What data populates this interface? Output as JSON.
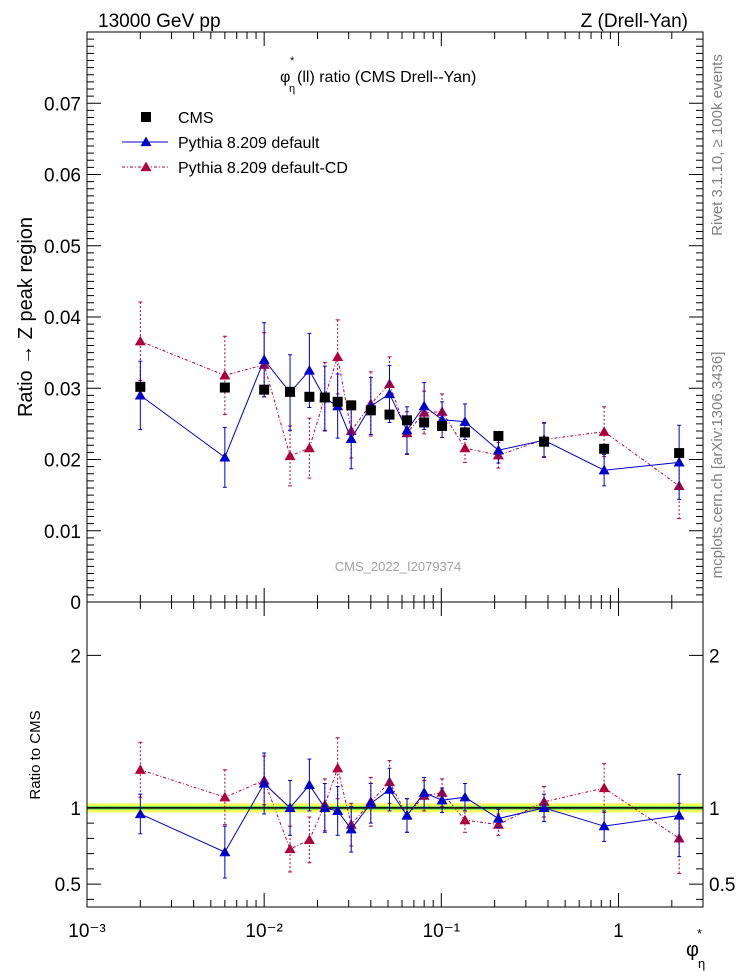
{
  "header": {
    "left_label": "13000 GeV pp",
    "right_label": "Z (Drell-Yan)"
  },
  "side_labels": {
    "rivet": "Rivet 3.1.10, ≥ 100k events",
    "mcplots": "mcplots.cern.ch [arXiv:1306.3436]"
  },
  "chart_data": [
    {
      "type": "scatter",
      "panel": "main",
      "title": "φη*(ll) ratio (CMS Drell--Yan)",
      "watermark": "CMS_2022_I2079374",
      "xlabel": "φη*",
      "ylabel": "Ratio → Z peak region",
      "xscale": "log",
      "xlim": [
        0.001,
        3
      ],
      "ylim": [
        0,
        0.08
      ],
      "yticks": [
        0,
        0.01,
        0.02,
        0.03,
        0.04,
        0.05,
        0.06,
        0.07
      ],
      "ytick_labels": [
        "0",
        "0.01",
        "0.02",
        "0.03",
        "0.04",
        "0.05",
        "0.06",
        "0.07"
      ],
      "xticks": [
        0.001,
        0.01,
        0.1,
        1
      ],
      "xtick_labels": [
        "10⁻³",
        "10⁻²",
        "10⁻¹",
        "1"
      ],
      "x": [
        0.002,
        0.006,
        0.01,
        0.014,
        0.018,
        0.022,
        0.026,
        0.031,
        0.04,
        0.051,
        0.064,
        0.08,
        0.101,
        0.136,
        0.21,
        0.38,
        0.83,
        2.2
      ],
      "series": [
        {
          "name": "CMS",
          "marker": "square",
          "color": "#000000",
          "values": [
            0.0302,
            0.0301,
            0.0298,
            0.0295,
            0.0288,
            0.0287,
            0.0281,
            0.0276,
            0.0269,
            0.0263,
            0.0255,
            0.0252,
            0.0247,
            0.0238,
            0.0233,
            0.0225,
            0.0215,
            0.0209
          ],
          "errors": [
            0.0008,
            0.0008,
            0.0007,
            0.0007,
            0.0006,
            0.0006,
            0.0006,
            0.0006,
            0.0005,
            0.0005,
            0.0005,
            0.0005,
            0.0005,
            0.0005,
            0.0005,
            0.0005,
            0.0006,
            0.0007
          ]
        },
        {
          "name": "Pythia 8.209 default",
          "marker": "triangle",
          "line": "solid",
          "color": "#0000cc",
          "values": [
            0.029,
            0.0203,
            0.034,
            0.0294,
            0.0325,
            0.0286,
            0.0275,
            0.0229,
            0.0275,
            0.0292,
            0.0241,
            0.0275,
            0.0256,
            0.0253,
            0.0213,
            0.0227,
            0.0185,
            0.0196
          ],
          "errors": [
            0.0048,
            0.0042,
            0.0052,
            0.0053,
            0.0052,
            0.0045,
            0.0045,
            0.0042,
            0.004,
            0.004,
            0.0033,
            0.0033,
            0.0025,
            0.0025,
            0.0018,
            0.0024,
            0.0022,
            0.0052
          ]
        },
        {
          "name": "Pythia 8.209 default-CD",
          "marker": "triangle",
          "line": "dash-dot",
          "color": "#b0003a",
          "values": [
            0.0366,
            0.0318,
            0.0333,
            0.0205,
            0.0216,
            0.0288,
            0.0344,
            0.024,
            0.0278,
            0.0306,
            0.0237,
            0.0266,
            0.0267,
            0.0216,
            0.0206,
            0.0228,
            0.0239,
            0.0163
          ],
          "errors": [
            0.0055,
            0.0055,
            0.0045,
            0.0042,
            0.0042,
            0.0048,
            0.0052,
            0.0038,
            0.0045,
            0.0038,
            0.003,
            0.003,
            0.0025,
            0.002,
            0.0018,
            0.0024,
            0.0035,
            0.0046
          ]
        }
      ]
    },
    {
      "type": "scatter",
      "panel": "ratio",
      "ylabel": "Ratio to CMS",
      "xscale": "log",
      "xlim": [
        0.001,
        3
      ],
      "ylim": [
        0.35,
        2.35
      ],
      "yticks": [
        0.5,
        1,
        2
      ],
      "ytick_labels": [
        "0.5",
        "1",
        "2"
      ],
      "band": {
        "center": 1.0,
        "inner": 0.013,
        "outer": 0.03
      },
      "x": [
        0.002,
        0.006,
        0.01,
        0.014,
        0.018,
        0.022,
        0.026,
        0.031,
        0.04,
        0.051,
        0.064,
        0.08,
        0.101,
        0.136,
        0.21,
        0.38,
        0.83,
        2.2
      ],
      "series": [
        {
          "name": "Pythia 8.209 default",
          "color": "#0000cc",
          "values": [
            0.96,
            0.71,
            1.16,
            1.0,
            1.15,
            1.0,
            0.98,
            0.86,
            1.03,
            1.12,
            0.95,
            1.1,
            1.05,
            1.07,
            0.93,
            1.0,
            0.88,
            0.95
          ],
          "errors": [
            0.13,
            0.17,
            0.2,
            0.18,
            0.17,
            0.16,
            0.16,
            0.15,
            0.13,
            0.14,
            0.11,
            0.1,
            0.08,
            0.09,
            0.06,
            0.09,
            0.1,
            0.27
          ]
        },
        {
          "name": "Pythia 8.209 default-CD",
          "color": "#b0003a",
          "values": [
            1.25,
            1.07,
            1.18,
            0.73,
            0.79,
            1.02,
            1.26,
            0.89,
            1.04,
            1.17,
            0.95,
            1.08,
            1.1,
            0.92,
            0.89,
            1.04,
            1.13,
            0.8
          ],
          "errors": [
            0.18,
            0.18,
            0.16,
            0.15,
            0.15,
            0.17,
            0.2,
            0.14,
            0.16,
            0.14,
            0.11,
            0.1,
            0.09,
            0.08,
            0.07,
            0.1,
            0.16,
            0.23
          ]
        }
      ]
    }
  ]
}
